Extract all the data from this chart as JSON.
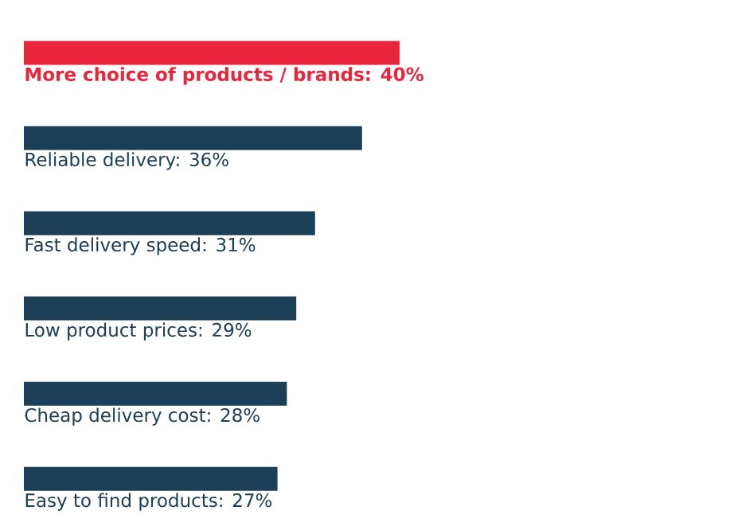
{
  "chart_data": {
    "type": "bar",
    "orientation": "horizontal",
    "categories": [
      null,
      null,
      null,
      null,
      null,
      null
    ],
    "values": [
      40,
      36,
      31,
      29,
      28,
      27
    ],
    "value_labels": [
      "More choice of products / brands: 40%",
      "Reliable delivery: 36%",
      "Fast delivery speed: 31%",
      "Low product prices: 29%",
      "Cheap delivery cost: 28%",
      "Easy to find products: 27%"
    ],
    "colors": [
      "#e8253a",
      "#1b3f57",
      "#1b3f57",
      "#1b3f57",
      "#1b3f57",
      "#1b3f57"
    ]
  }
}
